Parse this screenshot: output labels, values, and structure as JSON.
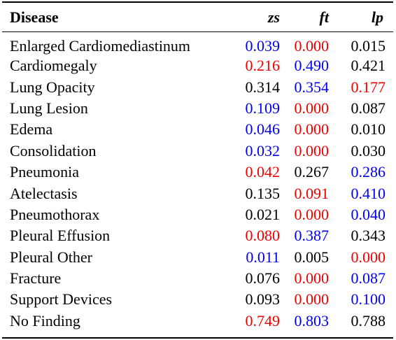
{
  "table": {
    "headers": {
      "disease": "Disease",
      "zs": "zs",
      "ft": "ft",
      "lp": "lp"
    },
    "rows": [
      {
        "disease": "Enlarged Cardiomediastinum",
        "zs": "0.039",
        "ft": "0.000",
        "lp": "0.015"
      },
      {
        "disease": "Cardiomegaly",
        "zs": "0.216",
        "ft": "0.490",
        "lp": "0.421"
      },
      {
        "disease": "Lung Opacity",
        "zs": "0.314",
        "ft": "0.354",
        "lp": "0.177"
      },
      {
        "disease": "Lung Lesion",
        "zs": "0.109",
        "ft": "0.000",
        "lp": "0.087"
      },
      {
        "disease": "Edema",
        "zs": "0.046",
        "ft": "0.000",
        "lp": "0.010"
      },
      {
        "disease": "Consolidation",
        "zs": "0.032",
        "ft": "0.000",
        "lp": "0.030"
      },
      {
        "disease": "Pneumonia",
        "zs": "0.042",
        "ft": "0.267",
        "lp": "0.286"
      },
      {
        "disease": "Atelectasis",
        "zs": "0.135",
        "ft": "0.091",
        "lp": "0.410"
      },
      {
        "disease": "Pneumothorax",
        "zs": "0.021",
        "ft": "0.000",
        "lp": "0.040"
      },
      {
        "disease": "Pleural Effusion",
        "zs": "0.080",
        "ft": "0.387",
        "lp": "0.343"
      },
      {
        "disease": "Pleural Other",
        "zs": "0.011",
        "ft": "0.005",
        "lp": "0.000"
      },
      {
        "disease": "Fracture",
        "zs": "0.076",
        "ft": "0.000",
        "lp": "0.087"
      },
      {
        "disease": "Support Devices",
        "zs": "0.093",
        "ft": "0.000",
        "lp": "0.100"
      },
      {
        "disease": "No Finding",
        "zs": "0.749",
        "ft": "0.803",
        "lp": "0.788"
      }
    ]
  },
  "colors": {
    "black": "#000000",
    "red": "#ee0000",
    "blue": "#0000ee"
  }
}
